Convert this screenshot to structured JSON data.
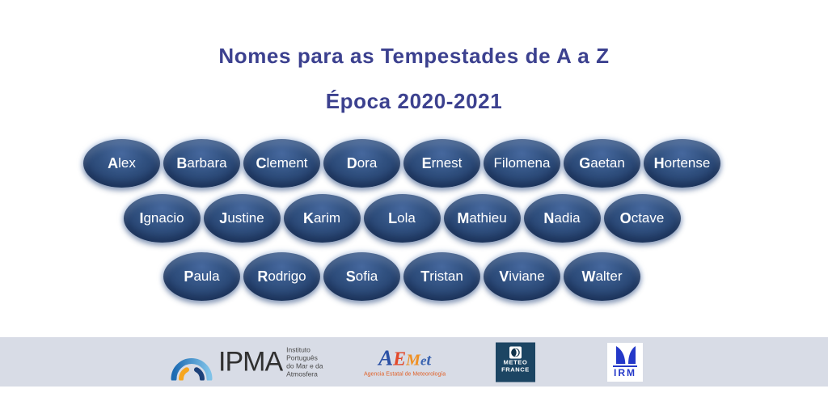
{
  "title": "Nomes para as Tempestades de A a Z",
  "subtitle": "Época 2020-2021",
  "storm_rows": [
    {
      "names": [
        {
          "first": "A",
          "rest": "lex",
          "bold_first": true
        },
        {
          "first": "B",
          "rest": "arbara",
          "bold_first": true
        },
        {
          "first": "C",
          "rest": "lement",
          "bold_first": true
        },
        {
          "first": "D",
          "rest": "ora",
          "bold_first": true
        },
        {
          "first": "E",
          "rest": "rnest",
          "bold_first": true
        },
        {
          "first": "F",
          "rest": "ilomena",
          "bold_first": false
        },
        {
          "first": "G",
          "rest": "aetan",
          "bold_first": true
        },
        {
          "first": "H",
          "rest": "ortense",
          "bold_first": true
        }
      ]
    },
    {
      "names": [
        {
          "first": "I",
          "rest": "gnacio",
          "bold_first": true
        },
        {
          "first": "J",
          "rest": "ustine",
          "bold_first": true
        },
        {
          "first": "K",
          "rest": "arim",
          "bold_first": true
        },
        {
          "first": "L",
          "rest": "ola",
          "bold_first": true
        },
        {
          "first": "M",
          "rest": "athieu",
          "bold_first": true
        },
        {
          "first": "N",
          "rest": "adia",
          "bold_first": true
        },
        {
          "first": "O",
          "rest": "ctave",
          "bold_first": true
        }
      ]
    },
    {
      "names": [
        {
          "first": "P",
          "rest": "aula",
          "bold_first": true
        },
        {
          "first": "R",
          "rest": "odrigo",
          "bold_first": true
        },
        {
          "first": "S",
          "rest": "ofia",
          "bold_first": true
        },
        {
          "first": "T",
          "rest": "ristan",
          "bold_first": true
        },
        {
          "first": "V",
          "rest": "iviane",
          "bold_first": true
        },
        {
          "first": "W",
          "rest": "alter",
          "bold_first": true
        }
      ]
    }
  ],
  "colors": {
    "title_text": "#3c418f",
    "bubble_fill": "#2f4d7f",
    "bubble_text": "#ffffff",
    "footer_band": "#d8dce6",
    "meteofrance_navy": "#1c4563",
    "irm_blue": "#2438c8",
    "ipma_arc_blue": "#3c8ccd",
    "ipma_arc_navy": "#1d4179",
    "ipma_arc_yellow": "#f6a61f"
  },
  "footer": {
    "ipma": {
      "acronym": "IPMA",
      "caption_lines": [
        "Instituto",
        "Português",
        "do Mar e da",
        "Atmosfera"
      ]
    },
    "aemet": {
      "letters": [
        {
          "ch": "A",
          "color": "#2a50a5"
        },
        {
          "ch": "E",
          "color": "#e2492b"
        },
        {
          "ch": "M",
          "color": "#ef9023"
        },
        {
          "ch": "e",
          "color": "#3a63b0"
        },
        {
          "ch": "t",
          "color": "#3a63b0"
        }
      ],
      "caption": "Agencia Estatal de Meteorología"
    },
    "meteofrance": {
      "line1": "METEO",
      "line2": "FRANCE"
    },
    "irm": {
      "label": "IRM"
    }
  }
}
